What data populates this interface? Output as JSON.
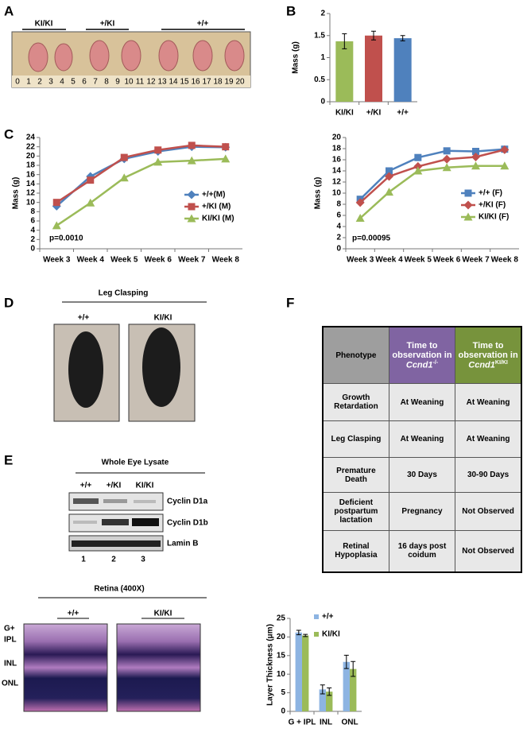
{
  "panel_labels": [
    "A",
    "B",
    "C",
    "D",
    "E",
    "F"
  ],
  "panel_a": {
    "genotypes": [
      "KI/KI",
      "+/KI",
      "+/+"
    ],
    "ruler": [
      "0",
      "1",
      "2",
      "3",
      "4",
      "5",
      "6",
      "7",
      "8",
      "9",
      "10",
      "11",
      "12",
      "13",
      "14",
      "15",
      "16",
      "17",
      "18",
      "19",
      "20"
    ]
  },
  "chart_data": [
    {
      "type": "bar",
      "y_label": "Mass (g)",
      "categories": [
        "KI/KI",
        "+/KI",
        "+/+"
      ],
      "values": [
        1.37,
        1.5,
        1.44
      ],
      "errors": [
        0.17,
        0.1,
        0.06
      ],
      "colors": [
        "#9bbb59",
        "#c0504d",
        "#4f81bd"
      ],
      "ylim": [
        0,
        2
      ],
      "yticks": [
        0,
        0.5,
        1,
        1.5,
        2
      ]
    },
    {
      "type": "line",
      "y_label": "Mass (g)",
      "annotation": "p=0.0010",
      "categories": [
        "Week 3",
        "Week 4",
        "Week 5",
        "Week 6",
        "Week 7",
        "Week 8"
      ],
      "series": [
        {
          "name": "+/+(M)",
          "color": "#4f81bd",
          "marker": "diamond",
          "values": [
            9.2,
            15.6,
            19.4,
            21,
            22,
            21.9
          ]
        },
        {
          "name": "+/KI (M)",
          "color": "#c0504d",
          "marker": "square",
          "values": [
            10,
            14.8,
            19.7,
            21.3,
            22.3,
            22
          ]
        },
        {
          "name": "KI/KI (M)",
          "color": "#9bbb59",
          "marker": "triangle",
          "values": [
            5,
            9.9,
            15.3,
            18.7,
            19,
            19.4
          ]
        }
      ],
      "ylim": [
        0,
        24
      ],
      "yticks": [
        0,
        2,
        4,
        6,
        8,
        10,
        12,
        14,
        16,
        18,
        20,
        22,
        24
      ]
    },
    {
      "type": "line",
      "y_label": "Mass (g)",
      "annotation": "p=0.00095",
      "categories": [
        "Week 3",
        "Week 4",
        "Week 5",
        "Week 6",
        "Week 7",
        "Week 8"
      ],
      "series": [
        {
          "name": "+/+ (F)",
          "color": "#4f81bd",
          "marker": "square",
          "values": [
            8.9,
            14,
            16.4,
            17.6,
            17.5,
            17.9
          ]
        },
        {
          "name": "+/KI (F)",
          "color": "#c0504d",
          "marker": "diamond",
          "values": [
            8.3,
            13,
            14.8,
            16.1,
            16.5,
            17.8
          ]
        },
        {
          "name": "KI/KI (F)",
          "color": "#9bbb59",
          "marker": "triangle",
          "values": [
            5.5,
            10.2,
            14,
            14.6,
            14.9,
            14.9
          ]
        }
      ],
      "ylim": [
        0,
        20
      ],
      "yticks": [
        0,
        2,
        4,
        6,
        8,
        10,
        12,
        14,
        16,
        18,
        20
      ]
    },
    {
      "type": "bar",
      "y_label": "Layer Thickness (μm)",
      "categories": [
        "G + IPL",
        "INL",
        "ONL"
      ],
      "series": [
        {
          "name": "+/+",
          "color": "#8db4e2",
          "values": [
            21.2,
            5.9,
            13.3
          ],
          "errors": [
            0.6,
            1.2,
            1.8
          ]
        },
        {
          "name": "KI/KI",
          "color": "#9bbb59",
          "values": [
            20.4,
            5.3,
            11.4
          ],
          "errors": [
            0.3,
            1.0,
            2.0
          ]
        }
      ],
      "ylim": [
        0,
        25
      ],
      "yticks": [
        0,
        5,
        10,
        15,
        20,
        25
      ]
    }
  ],
  "panel_d": {
    "title": "Leg Clasping",
    "genotypes": [
      "+/+",
      "KI/KI"
    ]
  },
  "panel_e": {
    "title": "Whole Eye Lysate",
    "lanes": [
      "+/+",
      "+/KI",
      "KI/KI"
    ],
    "bands": [
      "Cyclin D1a",
      "Cyclin D1b",
      "Lamin B"
    ],
    "lane_numbers": [
      "1",
      "2",
      "3"
    ],
    "retina_title": "Retina (400X)",
    "retina_genotypes": [
      "+/+",
      "KI/KI"
    ],
    "layers": [
      "G+",
      "IPL",
      "INL",
      "ONL"
    ]
  },
  "table": {
    "header": [
      {
        "text": "Phenotype"
      },
      {
        "text": "Time to observation in",
        "gene": "Ccnd1",
        "sup": "-/-"
      },
      {
        "text": "Time to observation in",
        "gene": "Ccnd1",
        "sup": "KI/KI"
      }
    ],
    "rows": [
      [
        "Growth Retardation",
        "At Weaning",
        "At Weaning"
      ],
      [
        "Leg Clasping",
        "At Weaning",
        "At Weaning"
      ],
      [
        "Premature Death",
        "30 Days",
        "30-90 Days"
      ],
      [
        "Deficient postpartum lactation",
        "Pregnancy",
        "Not Observed"
      ],
      [
        "Retinal Hypoplasia",
        "16 days post coidum",
        "Not Observed"
      ]
    ]
  }
}
